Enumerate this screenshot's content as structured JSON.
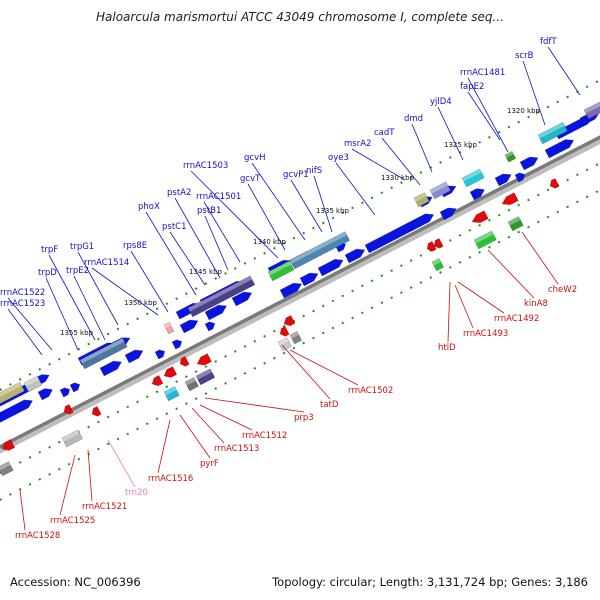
{
  "title": "Haloarcula marismortui ATCC 43049 chromosome I, complete seq...",
  "footer": {
    "accession": "Accession: NC_006396",
    "summary": "Topology: circular; Length: 3,131,724 bp; Genes: 3,186"
  },
  "colors": {
    "forward_label": "#1010c8",
    "reverse_label": "#cc1010",
    "rna_label": "#e080c0",
    "backbone": "#888888",
    "forward_gene": "#0a14e0",
    "reverse_gene": "#e00a0a"
  },
  "scale_labels": [
    {
      "text": "1320 kbp",
      "pos": 1320
    },
    {
      "text": "1325 kbp",
      "pos": 1325
    },
    {
      "text": "1330 kbp",
      "pos": 1330
    },
    {
      "text": "1335 kbp",
      "pos": 1335
    },
    {
      "text": "1340 kbp",
      "pos": 1340
    },
    {
      "text": "1345 kbp",
      "pos": 1345
    },
    {
      "text": "1350 kbp",
      "pos": 1350
    },
    {
      "text": "1355 kbp",
      "pos": 1355
    }
  ],
  "forward_labels": [
    "fdfT",
    "scrB",
    "rrnAC1481",
    "fapE2",
    "yjlD4",
    "dmd",
    "cadT",
    "msrA2",
    "oye3",
    "nifS",
    "gcvP1",
    "gcvH",
    "gcvT",
    "rrnAC1503",
    "rrnAC1501",
    "pstB1",
    "pstA2",
    "pstC1",
    "phoX",
    "rps8E",
    "rrnAC1514",
    "trpG1",
    "trpF",
    "trpE2",
    "trpD",
    "rrnAC1522",
    "rrnAC1523"
  ],
  "reverse_labels": [
    "cheW2",
    "kinA8",
    "rrnAC1492",
    "rrnAC1493",
    "htlD",
    "rrnAC1502",
    "tatD",
    "prp3",
    "rrnAC1512",
    "rrnAC1513",
    "pyrF",
    "rrnAC1516",
    "trn20",
    "rrnAC1521",
    "rrnAC1525",
    "rrnAC1528"
  ]
}
